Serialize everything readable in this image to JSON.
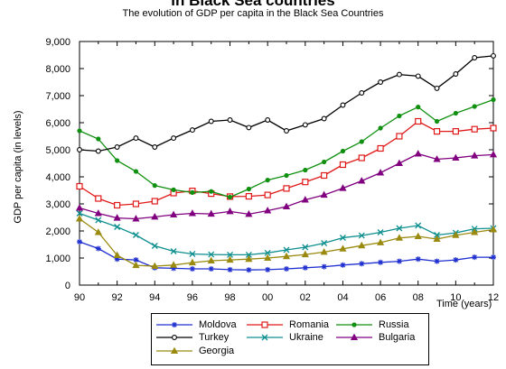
{
  "chart_data": {
    "type": "line",
    "title": "in Black Sea countries",
    "subtitle": "The evolution of GDP per capita in the Black Sea Countries",
    "ylabel": "GDP per capita (in levels)",
    "xlabel": "Time (years)",
    "xlim": [
      1990,
      2012
    ],
    "ylim": [
      0,
      9000
    ],
    "x_tick_values": [
      1990,
      1992,
      1994,
      1996,
      1998,
      2000,
      2002,
      2004,
      2006,
      2008,
      2010,
      2012
    ],
    "x_tick_labels": [
      "90",
      "92",
      "94",
      "96",
      "98",
      "00",
      "02",
      "04",
      "06",
      "08",
      "10",
      "12"
    ],
    "y_tick_values": [
      0,
      1000,
      2000,
      3000,
      4000,
      5000,
      6000,
      7000,
      8000,
      9000
    ],
    "y_tick_labels": [
      "0",
      "1,000",
      "2,000",
      "3,000",
      "4,000",
      "5,000",
      "6,000",
      "7,000",
      "8,000",
      "9,000"
    ],
    "grid": false,
    "legend_position": "bottom",
    "x": [
      1990,
      1991,
      1992,
      1993,
      1994,
      1995,
      1996,
      1997,
      1998,
      1999,
      2000,
      2001,
      2002,
      2003,
      2004,
      2005,
      2006,
      2007,
      2008,
      2009,
      2010,
      2011,
      2012
    ],
    "series": [
      {
        "name": "Moldova",
        "color": "#1f2fd0",
        "marker": "star",
        "values": [
          1600,
          1350,
          960,
          930,
          640,
          620,
          600,
          600,
          570,
          560,
          570,
          600,
          640,
          680,
          740,
          790,
          840,
          880,
          960,
          880,
          930,
          1030,
          1030
        ]
      },
      {
        "name": "Romania",
        "color": "#e01818",
        "marker": "square",
        "values": [
          3650,
          3200,
          2950,
          3000,
          3100,
          3400,
          3480,
          3380,
          3270,
          3280,
          3330,
          3570,
          3810,
          4050,
          4450,
          4700,
          5050,
          5500,
          6050,
          5680,
          5680,
          5760,
          5800
        ]
      },
      {
        "name": "Russia",
        "color": "#109010",
        "marker": "dot",
        "values": [
          5700,
          5400,
          4600,
          4200,
          3680,
          3520,
          3420,
          3460,
          3250,
          3550,
          3880,
          4050,
          4250,
          4550,
          4950,
          5300,
          5800,
          6250,
          6580,
          6050,
          6350,
          6600,
          6850
        ]
      },
      {
        "name": "Turkey",
        "color": "#000000",
        "marker": "circle",
        "values": [
          5000,
          4950,
          5100,
          5430,
          5100,
          5430,
          5730,
          6050,
          6100,
          5820,
          6100,
          5700,
          5920,
          6150,
          6650,
          7100,
          7500,
          7780,
          7720,
          7270,
          7800,
          8400,
          8470
        ]
      },
      {
        "name": "Ukraine",
        "color": "#0f8f8f",
        "marker": "x",
        "values": [
          2650,
          2400,
          2150,
          1850,
          1450,
          1250,
          1150,
          1130,
          1120,
          1120,
          1190,
          1300,
          1400,
          1550,
          1750,
          1830,
          1950,
          2100,
          2200,
          1850,
          1930,
          2080,
          2100
        ]
      },
      {
        "name": "Bulgaria",
        "color": "#800080",
        "marker": "triangle",
        "values": [
          2850,
          2650,
          2480,
          2450,
          2520,
          2600,
          2650,
          2630,
          2720,
          2620,
          2750,
          2900,
          3150,
          3330,
          3580,
          3850,
          4150,
          4500,
          4850,
          4650,
          4700,
          4780,
          4820
        ]
      },
      {
        "name": "Georgia",
        "color": "#9a8a10",
        "marker": "triangle",
        "values": [
          2450,
          1950,
          1100,
          730,
          700,
          740,
          830,
          900,
          930,
          960,
          1000,
          1060,
          1130,
          1220,
          1340,
          1460,
          1570,
          1740,
          1800,
          1700,
          1840,
          1950,
          2050
        ]
      }
    ]
  }
}
